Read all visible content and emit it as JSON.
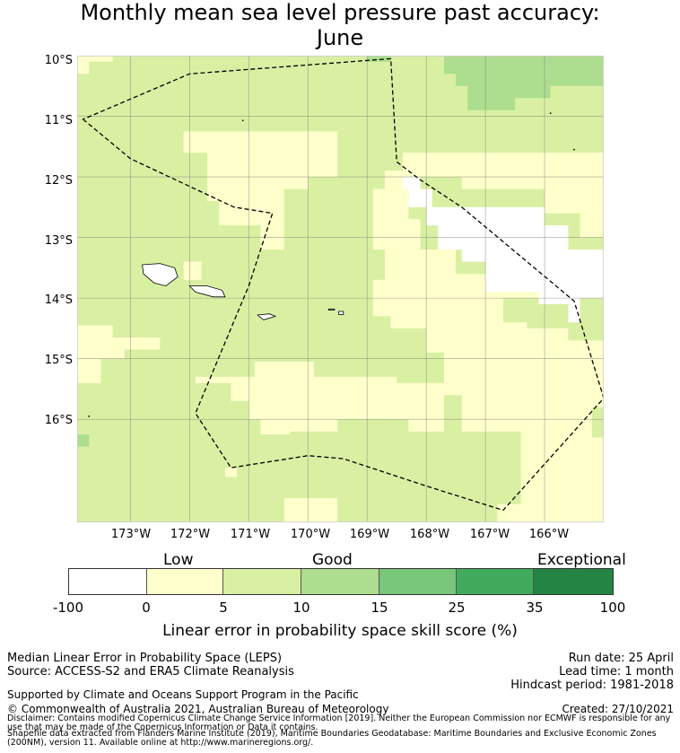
{
  "title": "Monthly mean sea level pressure past accuracy: June",
  "title_line1": "Monthly mean sea level pressure past accuracy:",
  "title_line2": "June",
  "map": {
    "lat_labels": [
      "10°S",
      "11°S",
      "12°S",
      "13°S",
      "14°S",
      "15°S",
      "16°S"
    ],
    "lon_labels": [
      "173°W",
      "172°W",
      "171°W",
      "170°W",
      "169°W",
      "168°W",
      "167°W",
      "166°W"
    ],
    "extent": {
      "lon_min": -173.9,
      "lon_max": -165.0,
      "lat_min": -17.7,
      "lat_max": -10.0
    },
    "boundary_style": "dashed",
    "region_boundary": [
      [
        -173.8,
        -11.05
      ],
      [
        -173.0,
        -11.7
      ],
      [
        -171.25,
        -12.5
      ],
      [
        -170.6,
        -12.6
      ],
      [
        -171.0,
        -13.8
      ],
      [
        -171.9,
        -15.9
      ],
      [
        -171.3,
        -16.8
      ],
      [
        -170.0,
        -16.6
      ],
      [
        -169.4,
        -16.65
      ],
      [
        -168.0,
        -17.1
      ],
      [
        -166.7,
        -17.5
      ],
      [
        -165.0,
        -15.65
      ],
      [
        -165.5,
        -14.05
      ],
      [
        -167.4,
        -12.5
      ],
      [
        -168.1,
        -12.05
      ],
      [
        -168.5,
        -11.75
      ],
      [
        -168.6,
        -10.05
      ],
      [
        -172.0,
        -10.3
      ],
      [
        -173.8,
        -11.05
      ]
    ],
    "colors": {
      "white": "#ffffff",
      "light_yellow": "#ffffcc",
      "light_green": "#d9f0a3",
      "medium_green": "#addd8e",
      "grid": "#7a7a7a",
      "land": "#ffffff",
      "coast": "#000000"
    }
  },
  "colorbar": {
    "category_labels": [
      "Low",
      "Good",
      "Exceptional"
    ],
    "ticks": [
      "-100",
      "0",
      "5",
      "10",
      "15",
      "25",
      "35",
      "100"
    ],
    "segment_colors": [
      "#ffffff",
      "#ffffcc",
      "#d9f0a3",
      "#addd8e",
      "#78c679",
      "#41ab5d",
      "#238443"
    ],
    "label": "Linear error in probability space skill score (%)"
  },
  "footer": {
    "method": "Median Linear Error in Probability Space (LEPS)",
    "source": "Source: ACCESS-S2 and ERA5 Climate Reanalysis",
    "support": "Supported by Climate and Oceans Support Program in the Pacific",
    "copyright": "© Commonwealth of Australia 2021, Australian Bureau of Meteorology",
    "run_date": "Run date: 25 April",
    "lead_time": "Lead time: 1 month",
    "hindcast": "Hindcast period: 1981-2018",
    "created": "Created: 27/10/2021",
    "disclaimer": "Disclaimer: Contains modified Copernicus Climate Change Service Information [2019]. Neither the European Commission nor ECMWF is responsible for any use that may be made of the Copernicus Information or Data it contains.",
    "shapefile": "Shapefile data extracted from Flanders Marine Institute (2019), Maritime Boundaries Geodatabase: Maritime Boundaries and Exclusive Economic Zones (200NM), version 11. Available online at http://www.marineregions.org/."
  }
}
